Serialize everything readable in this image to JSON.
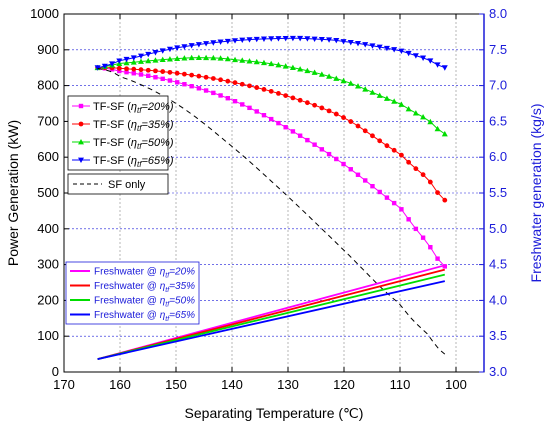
{
  "chart_data": {
    "type": "line",
    "xlabel": "Separating Temperature (℃)",
    "ylabel": "Power Generation (kW)",
    "y2label": "Freshwater generation (kg/s)",
    "xlim": [
      170,
      95
    ],
    "ylim": [
      0,
      1000
    ],
    "y2lim": [
      3.0,
      8.0
    ],
    "x_ticks": [
      170,
      160,
      150,
      140,
      130,
      120,
      110,
      100
    ],
    "y_ticks": [
      0,
      100,
      200,
      300,
      400,
      500,
      600,
      700,
      800,
      900,
      1000
    ],
    "y2_ticks": [
      "3.0",
      "3.5",
      "4.0",
      "4.5",
      "5.0",
      "5.5",
      "6.0",
      "6.5",
      "7.0",
      "7.5",
      "8.0"
    ],
    "grid": true,
    "colors": {
      "axis_right": "#1b1bd9",
      "grid": "#1b1bd9",
      "eta20": "#ff00ff",
      "eta35": "#ff0000",
      "eta50": "#00dd00",
      "eta65": "#0000ff",
      "sf": "#000000"
    },
    "power_series": [
      {
        "name": "TF-SF (ηtf=20%)",
        "legend_main": "TF-SF (",
        "legend_sym": "η",
        "legend_sub": "tf",
        "legend_end": "=20%)",
        "marker": "square",
        "color": "#ff00ff",
        "x": [
          164,
          160,
          150,
          140,
          130,
          120,
          110,
          105,
          102
        ],
        "y": [
          850,
          840,
          810,
          760,
          680,
          580,
          460,
          360,
          295
        ]
      },
      {
        "name": "TF-SF (ηtf=35%)",
        "legend_main": "TF-SF (",
        "legend_sym": "η",
        "legend_sub": "tf",
        "legend_end": "=35%)",
        "marker": "circle",
        "color": "#ff0000",
        "x": [
          164,
          160,
          150,
          140,
          130,
          120,
          110,
          105,
          102
        ],
        "y": [
          850,
          848,
          835,
          810,
          770,
          710,
          610,
          540,
          480
        ]
      },
      {
        "name": "TF-SF (ηtf=50%)",
        "legend_main": "TF-SF (",
        "legend_sym": "η",
        "legend_sub": "tf",
        "legend_end": "=50%)",
        "marker": "triangle-up",
        "color": "#00dd00",
        "x": [
          164,
          160,
          150,
          145,
          140,
          130,
          120,
          110,
          105,
          102
        ],
        "y": [
          850,
          862,
          875,
          878,
          873,
          853,
          813,
          750,
          705,
          665
        ]
      },
      {
        "name": "TF-SF (ηtf=65%)",
        "legend_main": "TF-SF (",
        "legend_sym": "η",
        "legend_sub": "tf",
        "legend_end": "=65%)",
        "marker": "triangle-down",
        "color": "#0000ff",
        "x": [
          164,
          160,
          150,
          140,
          130,
          125,
          120,
          110,
          105,
          102
        ],
        "y": [
          850,
          870,
          905,
          925,
          932,
          930,
          923,
          898,
          873,
          850
        ]
      }
    ],
    "sf_series": {
      "name": "SF only",
      "x": [
        164,
        160,
        150,
        140,
        130,
        120,
        110,
        105,
        102
      ],
      "y": [
        848,
        825,
        750,
        630,
        490,
        340,
        190,
        105,
        50
      ]
    },
    "freshwater_series": [
      {
        "name": "Freshwater @ ηtf=20%",
        "legend_main": "Freshwater @ ",
        "legend_sym": "η",
        "legend_sub": "tf",
        "legend_end": "=20%",
        "color": "#ff00ff",
        "x": [
          164,
          102
        ],
        "y": [
          3.18,
          4.49
        ]
      },
      {
        "name": "Freshwater @ ηtf=35%",
        "legend_main": "Freshwater @ ",
        "legend_sym": "η",
        "legend_sub": "tf",
        "legend_end": "=35%",
        "color": "#ff0000",
        "x": [
          164,
          102
        ],
        "y": [
          3.18,
          4.43
        ]
      },
      {
        "name": "Freshwater @ ηtf=50%",
        "legend_main": "Freshwater @ ",
        "legend_sym": "η",
        "legend_sub": "tf",
        "legend_end": "=50%",
        "color": "#00dd00",
        "x": [
          164,
          102
        ],
        "y": [
          3.18,
          4.36
        ]
      },
      {
        "name": "Freshwater @ ηtf=65%",
        "legend_main": "Freshwater @ ",
        "legend_sym": "η",
        "legend_sub": "tf",
        "legend_end": "=65%",
        "color": "#0000ff",
        "x": [
          164,
          102
        ],
        "y": [
          3.18,
          4.27
        ]
      }
    ]
  }
}
